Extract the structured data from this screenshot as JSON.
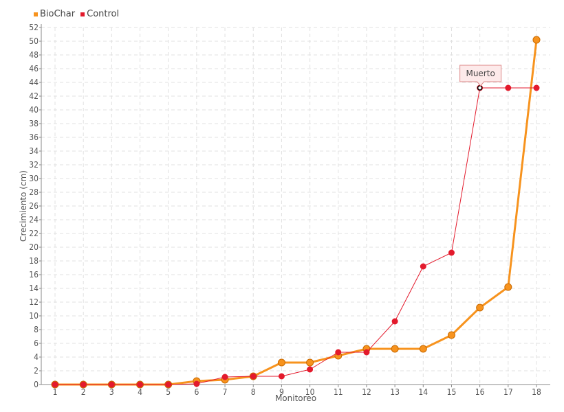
{
  "chart_data": {
    "type": "line",
    "title": "",
    "xlabel": "Monitoreo",
    "ylabel": "Crecimiento (cm)",
    "categories": [
      "1",
      "2",
      "3",
      "4",
      "5",
      "6",
      "7",
      "8",
      "9",
      "10",
      "11",
      "12",
      "13",
      "14",
      "15",
      "16",
      "17",
      "18"
    ],
    "ylim": [
      0,
      52
    ],
    "ytick_step": 2,
    "grid": true,
    "legend_position": "top-left",
    "series": [
      {
        "name": "BioChar",
        "color": "#f7931e",
        "values": [
          0,
          0,
          0,
          0,
          0,
          0.5,
          0.7,
          1.2,
          3.2,
          3.2,
          4.2,
          5.2,
          5.2,
          5.2,
          7.2,
          11.2,
          14.2,
          50.2
        ]
      },
      {
        "name": "Control",
        "color": "#e31a2c",
        "values": [
          0,
          0,
          0,
          0,
          0,
          0.1,
          1.1,
          1.2,
          1.2,
          2.2,
          4.7,
          4.7,
          9.2,
          17.2,
          19.2,
          43.2,
          43.2,
          43.2
        ]
      }
    ],
    "annotation": {
      "text": "Muerto",
      "series": "Control",
      "category": "16",
      "value": 43.2
    }
  }
}
